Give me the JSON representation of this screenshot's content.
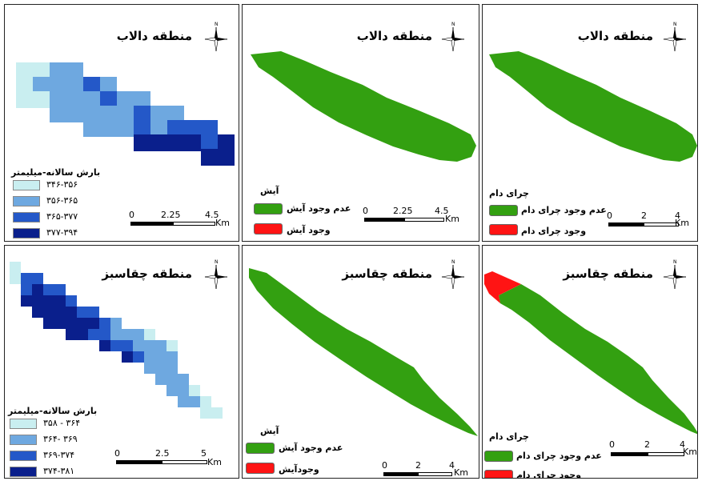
{
  "titles": {
    "dalab": "منطقه دالاب",
    "chaghasabz": "منطقه چقاسبز"
  },
  "north_label": "N",
  "precip_legend": {
    "title": "بارش سالانه-میلیمتر",
    "dalab_ranges": [
      "۳۴۶-۳۵۶",
      "۳۵۶-۳۶۵",
      "۳۶۵-۳۷۷",
      "۳۷۷-۳۹۴"
    ],
    "chaghasabz_ranges": [
      "۳۵۸ - ۳۶۴",
      "۳۶۴- ۳۶۹",
      "۳۶۹-۳۷۴",
      "۳۷۴-۳۸۱"
    ],
    "colors": [
      "#c9eef0",
      "#6ea8e0",
      "#2458c8",
      "#0a1f8c"
    ]
  },
  "fallow_legend": {
    "title": "آیش",
    "absent": "عدم وجود آیش",
    "present_dalab": "وجود آیش",
    "present_chaghasabz": "وجودآیش"
  },
  "grazing_legend": {
    "title": "چرای دام",
    "absent": "عدم وجود چرای دام",
    "present": "وجود چرای دام"
  },
  "scales": {
    "dalab_precip": [
      "0",
      "2.25",
      "4.5"
    ],
    "dalab_fallow": [
      "0",
      "2.25",
      "4.5"
    ],
    "dalab_grazing": [
      "0",
      "2",
      "4"
    ],
    "chaghasabz_precip": [
      "0",
      "2.5",
      "5"
    ],
    "chaghasabz_fallow": [
      "0",
      "2",
      "4"
    ],
    "chaghasabz_grazing": [
      "0",
      "2",
      "4"
    ],
    "unit": "Km"
  },
  "colors": {
    "absent": "#33a011",
    "present": "#ff1414"
  }
}
